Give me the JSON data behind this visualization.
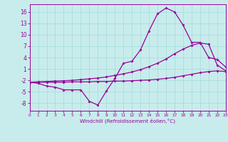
{
  "x": [
    0,
    1,
    2,
    3,
    4,
    5,
    6,
    7,
    8,
    9,
    10,
    11,
    12,
    13,
    14,
    15,
    16,
    17,
    18,
    19,
    20,
    21,
    22,
    23
  ],
  "y_main": [
    -2.5,
    -2.8,
    -3.5,
    -3.8,
    -4.5,
    -4.5,
    -4.5,
    -7.5,
    -8.5,
    -4.8,
    -1.5,
    2.5,
    3.0,
    6.0,
    11.0,
    15.5,
    17.0,
    16.0,
    12.5,
    8.0,
    8.0,
    4.0,
    3.5,
    1.5
  ],
  "y_upper": [
    -2.5,
    -2.4,
    -2.3,
    -2.2,
    -2.1,
    -2.0,
    -1.8,
    -1.6,
    -1.4,
    -1.1,
    -0.7,
    -0.3,
    0.2,
    0.8,
    1.6,
    2.5,
    3.6,
    5.0,
    6.2,
    7.2,
    7.8,
    7.5,
    2.0,
    0.5
  ],
  "y_lower": [
    -2.5,
    -2.5,
    -2.5,
    -2.5,
    -2.5,
    -2.4,
    -2.4,
    -2.4,
    -2.3,
    -2.3,
    -2.2,
    -2.2,
    -2.1,
    -2.0,
    -1.9,
    -1.7,
    -1.5,
    -1.2,
    -0.8,
    -0.4,
    0.0,
    0.3,
    0.5,
    0.3
  ],
  "bg_color": "#c8ecec",
  "line_color": "#990099",
  "grid_color": "#aadddd",
  "xlabel": "Windchill (Refroidissement éolien,°C)",
  "yticks": [
    -8,
    -5,
    -2,
    1,
    4,
    7,
    10,
    13,
    16
  ],
  "xticks": [
    0,
    1,
    2,
    3,
    4,
    5,
    6,
    7,
    8,
    9,
    10,
    11,
    12,
    13,
    14,
    15,
    16,
    17,
    18,
    19,
    20,
    21,
    22,
    23
  ],
  "ylim": [
    -10,
    18
  ],
  "xlim": [
    0,
    23
  ]
}
